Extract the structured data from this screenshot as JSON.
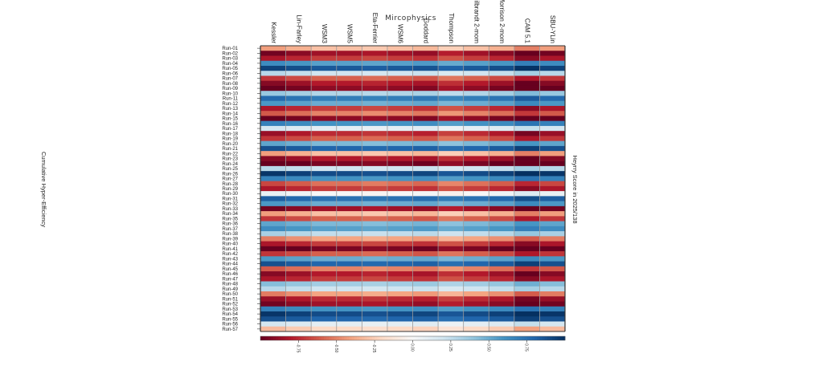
{
  "chart_data": {
    "type": "heatmap",
    "title": "Mircophysics",
    "xlabel": "",
    "ylabel_left": "Cumulative Hyper-Efficiency",
    "ylabel_right": "Heyrry Score in 2025/138",
    "columns": [
      "Kessler",
      "Lin-Farley",
      "WSM3",
      "WSM5",
      "Eta-Ferrier",
      "WSM6",
      "Goddard",
      "Thompson",
      "Milbrandt 2-mom",
      "Morrison 2-mom",
      "CAM 5.1",
      "SBU-YLin"
    ],
    "rows": [
      "Run-01",
      "Run-02",
      "Run-03",
      "Run-04",
      "Run-05",
      "Run-06",
      "Run-07",
      "Run-08",
      "Run-09",
      "Run-10",
      "Run-11",
      "Run-12",
      "Run-13",
      "Run-14",
      "Run-15",
      "Run-16",
      "Run-17",
      "Run-18",
      "Run-19",
      "Run-20",
      "Run-21",
      "Run-22",
      "Run-23",
      "Run-24",
      "Run-25",
      "Run-26",
      "Run-27",
      "Run-28",
      "Run-29",
      "Run-30",
      "Run-31",
      "Run-32",
      "Run-33",
      "Run-34",
      "Run-35",
      "Run-36",
      "Run-37",
      "Run-38",
      "Run-39",
      "Run-40",
      "Run-41",
      "Run-42",
      "Run-43",
      "Run-44",
      "Run-45",
      "Run-46",
      "Run-47",
      "Run-48",
      "Run-49",
      "Run-50",
      "Run-51",
      "Run-52",
      "Run-53",
      "Run-54",
      "Run-55",
      "Run-56",
      "Run-57"
    ],
    "row_base": [
      -0.3,
      -0.85,
      -0.7,
      0.55,
      0.85,
      0.2,
      -0.6,
      -0.8,
      -0.9,
      0.3,
      0.7,
      0.5,
      -0.7,
      -0.5,
      -0.9,
      0.6,
      0.1,
      -0.75,
      -0.6,
      0.45,
      0.8,
      -0.3,
      -0.8,
      -0.95,
      0.2,
      0.9,
      0.6,
      -0.55,
      -0.7,
      0.0,
      0.75,
      0.5,
      -0.85,
      -0.3,
      -0.6,
      0.45,
      0.55,
      0.25,
      -0.4,
      -0.7,
      -0.95,
      -0.6,
      0.5,
      0.8,
      -0.5,
      -0.8,
      -0.7,
      0.35,
      0.2,
      -0.4,
      -0.75,
      -0.85,
      0.6,
      0.9,
      0.8,
      0.1,
      -0.2
    ],
    "col_shift": [
      0.2,
      0.1,
      0.0,
      0.0,
      -0.05,
      0.0,
      0.05,
      -0.1,
      0.0,
      0.1,
      0.35,
      0.2
    ],
    "colorbar": {
      "min": -1,
      "max": 1,
      "ticks": [
        "-0.75",
        "-0.50",
        "-0.25",
        "0.00",
        "0.25",
        "0.50",
        "0.75"
      ]
    },
    "colorscale": [
      "#67001f",
      "#b2182b",
      "#d6604d",
      "#f4a582",
      "#fddbc7",
      "#f7f7f7",
      "#d1e5f0",
      "#92c5de",
      "#4393c3",
      "#2166ac",
      "#053061"
    ]
  }
}
